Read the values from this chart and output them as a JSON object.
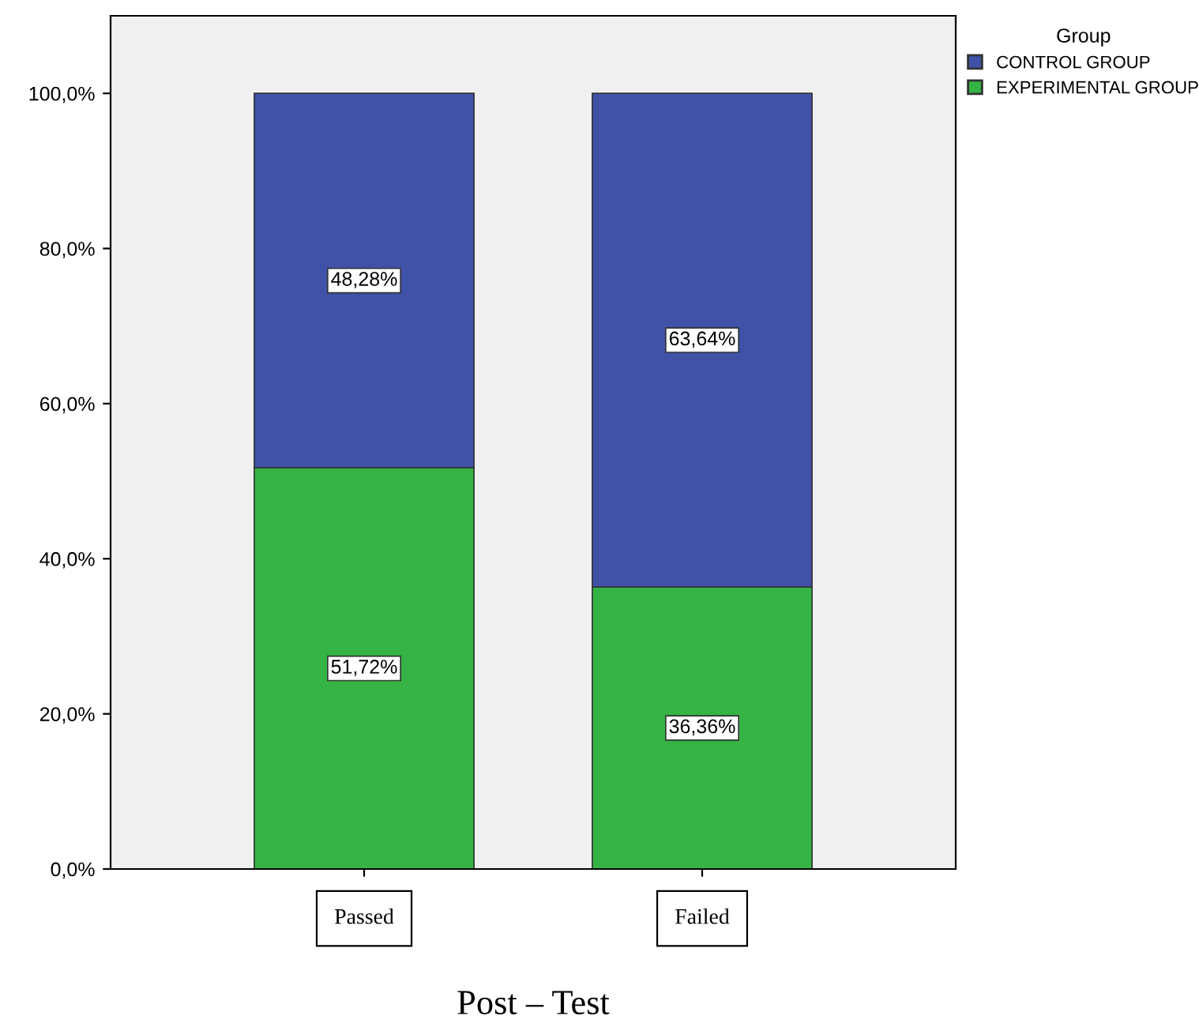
{
  "chart_data": {
    "type": "bar",
    "stacked": true,
    "xlabel": "Post – Test",
    "legend_title": "Group",
    "legend": "top right",
    "categories": [
      "Passed",
      "Failed"
    ],
    "series": [
      {
        "name": "EXPERIMENTAL GROUP",
        "color": "#35b445",
        "values": [
          51.72,
          36.36
        ],
        "value_labels": [
          "51,72%",
          "36,36%"
        ]
      },
      {
        "name": "CONTROL GROUP",
        "color": "#3f52a8",
        "values": [
          48.28,
          63.64
        ],
        "value_labels": [
          "48,28%",
          "63,64%"
        ]
      }
    ],
    "ylim": [
      0,
      110
    ],
    "yticks": [
      {
        "value": 0,
        "label": "0,0%"
      },
      {
        "value": 20,
        "label": "20,0%"
      },
      {
        "value": 40,
        "label": "40,0%"
      },
      {
        "value": 60,
        "label": "60,0%"
      },
      {
        "value": 80,
        "label": "80,0%"
      },
      {
        "value": 100,
        "label": "100,0%"
      }
    ],
    "grid": false
  }
}
